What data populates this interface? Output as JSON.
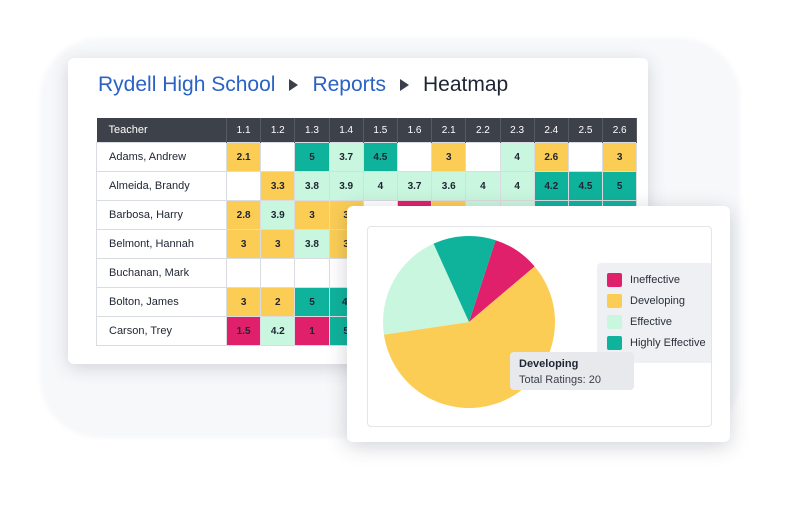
{
  "breadcrumb": {
    "school": "Rydell High School",
    "reports": "Reports",
    "current": "Heatmap"
  },
  "palette": {
    "ineffective": "#e0206b",
    "developing": "#fccd55",
    "effective": "#c9f6de",
    "highly_effective": "#0fb39c",
    "empty": "#ffffff"
  },
  "heatmap": {
    "teacher_header": "Teacher",
    "columns": [
      "1.1",
      "1.2",
      "1.3",
      "1.4",
      "1.5",
      "1.6",
      "2.1",
      "2.2",
      "2.3",
      "2.4",
      "2.5",
      "2.6"
    ],
    "rows": [
      {
        "name": "Adams, Andrew",
        "cells": [
          {
            "v": "2.1",
            "c": "developing"
          },
          {
            "v": "",
            "c": "empty"
          },
          {
            "v": "5",
            "c": "highly_effective"
          },
          {
            "v": "3.7",
            "c": "effective"
          },
          {
            "v": "4.5",
            "c": "highly_effective"
          },
          {
            "v": "",
            "c": "empty"
          },
          {
            "v": "3",
            "c": "developing"
          },
          {
            "v": "",
            "c": "empty"
          },
          {
            "v": "4",
            "c": "effective"
          },
          {
            "v": "2.6",
            "c": "developing"
          },
          {
            "v": "",
            "c": "empty"
          },
          {
            "v": "3",
            "c": "developing"
          }
        ]
      },
      {
        "name": "Almeida, Brandy",
        "cells": [
          {
            "v": "",
            "c": "empty"
          },
          {
            "v": "3.3",
            "c": "developing"
          },
          {
            "v": "3.8",
            "c": "effective"
          },
          {
            "v": "3.9",
            "c": "effective"
          },
          {
            "v": "4",
            "c": "effective"
          },
          {
            "v": "3.7",
            "c": "effective"
          },
          {
            "v": "3.6",
            "c": "effective"
          },
          {
            "v": "4",
            "c": "effective"
          },
          {
            "v": "4",
            "c": "effective"
          },
          {
            "v": "4.2",
            "c": "highly_effective"
          },
          {
            "v": "4.5",
            "c": "highly_effective"
          },
          {
            "v": "5",
            "c": "highly_effective"
          }
        ]
      },
      {
        "name": "Barbosa, Harry",
        "cells": [
          {
            "v": "2.8",
            "c": "developing"
          },
          {
            "v": "3.9",
            "c": "effective"
          },
          {
            "v": "3",
            "c": "developing"
          },
          {
            "v": "3",
            "c": "developing"
          },
          {
            "v": "",
            "c": "empty"
          },
          {
            "v": "",
            "c": "ineffective"
          },
          {
            "v": "",
            "c": "developing"
          },
          {
            "v": "",
            "c": "effective"
          },
          {
            "v": "",
            "c": "effective"
          },
          {
            "v": "",
            "c": "highly_effective"
          },
          {
            "v": "",
            "c": "highly_effective"
          },
          {
            "v": "",
            "c": "highly_effective"
          }
        ]
      },
      {
        "name": "Belmont, Hannah",
        "cells": [
          {
            "v": "3",
            "c": "developing"
          },
          {
            "v": "3",
            "c": "developing"
          },
          {
            "v": "3.8",
            "c": "effective"
          },
          {
            "v": "3",
            "c": "developing"
          },
          {
            "v": "",
            "c": "empty"
          },
          {
            "v": "",
            "c": "empty"
          },
          {
            "v": "",
            "c": "empty"
          },
          {
            "v": "",
            "c": "empty"
          },
          {
            "v": "",
            "c": "empty"
          },
          {
            "v": "",
            "c": "empty"
          },
          {
            "v": "",
            "c": "empty"
          },
          {
            "v": "",
            "c": "empty"
          }
        ]
      },
      {
        "name": "Buchanan, Mark",
        "cells": [
          {
            "v": "",
            "c": "empty"
          },
          {
            "v": "",
            "c": "empty"
          },
          {
            "v": "",
            "c": "empty"
          },
          {
            "v": "",
            "c": "empty"
          },
          {
            "v": "",
            "c": "empty"
          },
          {
            "v": "",
            "c": "empty"
          },
          {
            "v": "",
            "c": "empty"
          },
          {
            "v": "",
            "c": "empty"
          },
          {
            "v": "",
            "c": "empty"
          },
          {
            "v": "",
            "c": "empty"
          },
          {
            "v": "",
            "c": "empty"
          },
          {
            "v": "",
            "c": "empty"
          }
        ]
      },
      {
        "name": "Bolton, James",
        "cells": [
          {
            "v": "3",
            "c": "developing"
          },
          {
            "v": "2",
            "c": "developing"
          },
          {
            "v": "5",
            "c": "highly_effective"
          },
          {
            "v": "4.",
            "c": "highly_effective"
          },
          {
            "v": "",
            "c": "empty"
          },
          {
            "v": "",
            "c": "empty"
          },
          {
            "v": "",
            "c": "empty"
          },
          {
            "v": "",
            "c": "empty"
          },
          {
            "v": "",
            "c": "empty"
          },
          {
            "v": "",
            "c": "empty"
          },
          {
            "v": "",
            "c": "empty"
          },
          {
            "v": "",
            "c": "empty"
          }
        ]
      },
      {
        "name": "Carson, Trey",
        "cells": [
          {
            "v": "1.5",
            "c": "ineffective"
          },
          {
            "v": "4.2",
            "c": "effective"
          },
          {
            "v": "1",
            "c": "ineffective"
          },
          {
            "v": "5",
            "c": "highly_effective"
          },
          {
            "v": "",
            "c": "empty"
          },
          {
            "v": "",
            "c": "empty"
          },
          {
            "v": "",
            "c": "empty"
          },
          {
            "v": "",
            "c": "empty"
          },
          {
            "v": "",
            "c": "empty"
          },
          {
            "v": "",
            "c": "empty"
          },
          {
            "v": "",
            "c": "empty"
          },
          {
            "v": "",
            "c": "empty"
          }
        ]
      }
    ]
  },
  "chart_data": {
    "type": "pie",
    "categories": [
      "Ineffective",
      "Developing",
      "Effective",
      "Highly Effective"
    ],
    "values": [
      3,
      20,
      7,
      4
    ],
    "colors": [
      "#e0206b",
      "#fccd55",
      "#c9f6de",
      "#0fb39c"
    ],
    "legend_position": "right"
  },
  "legend": {
    "items": [
      {
        "label": "Ineffective",
        "key": "ineffective"
      },
      {
        "label": "Developing",
        "key": "developing"
      },
      {
        "label": "Effective",
        "key": "effective"
      },
      {
        "label": "Highly Effective",
        "key": "highly_effective"
      }
    ]
  },
  "tooltip": {
    "title": "Developing",
    "detail": "Total Ratings: 20"
  }
}
